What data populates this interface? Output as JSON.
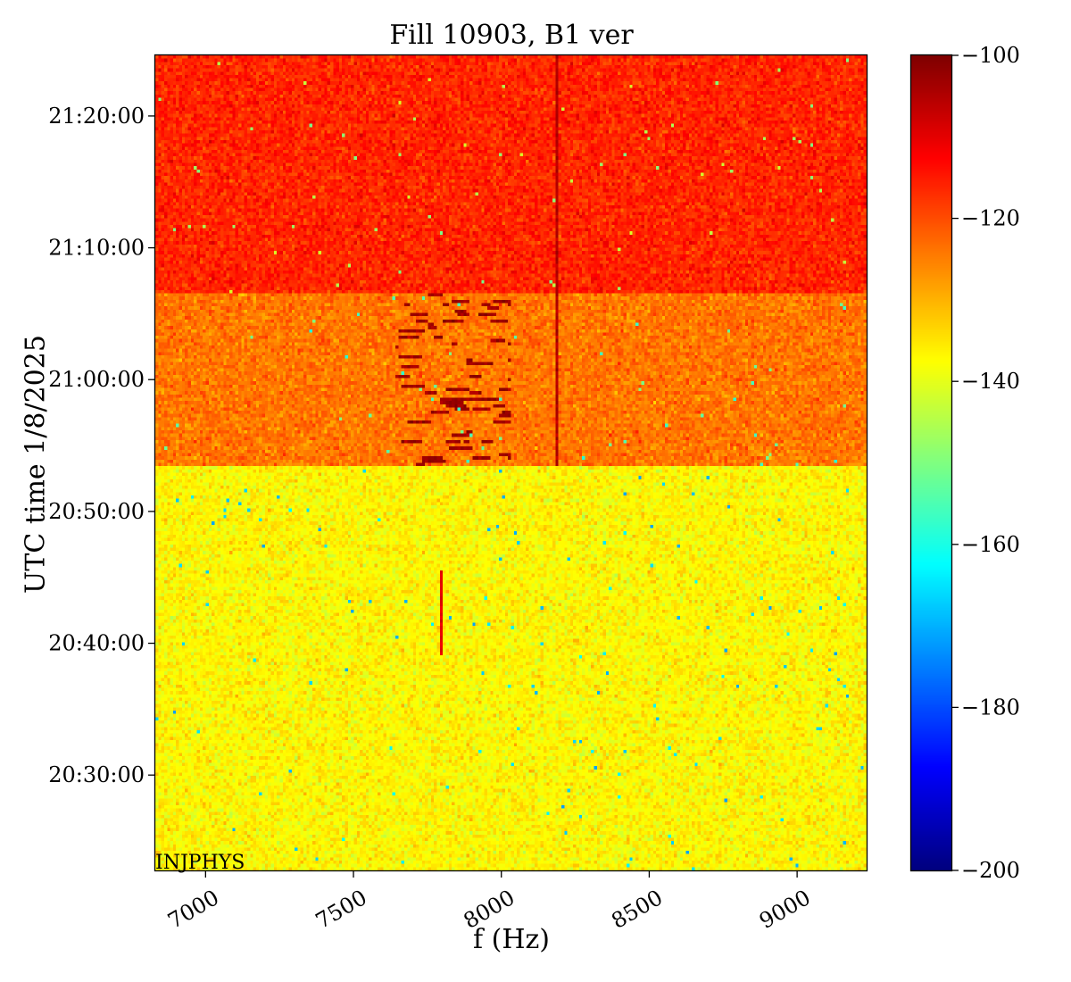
{
  "chart_data": {
    "type": "heatmap",
    "title": "Fill 10903, B1 ver",
    "xlabel": "f (Hz)",
    "ylabel": "UTC time 1/8/2025",
    "annotation": "INJPHYS",
    "x_range": [
      6830,
      9235
    ],
    "x_ticks": [
      7000,
      7500,
      8000,
      8500,
      9000
    ],
    "y_range": [
      "20:22:46",
      "21:24:36"
    ],
    "y_ticks": [
      "20:30:00",
      "20:40:00",
      "20:50:00",
      "21:00:00",
      "21:10:00",
      "21:20:00"
    ],
    "colormap": "jet",
    "colorbar": {
      "range": [
        -200,
        -100
      ],
      "ticks": [
        -100,
        -120,
        -140,
        -160,
        -180,
        -200
      ],
      "tick_labels": [
        "−100",
        "−120",
        "−140",
        "−160",
        "−180",
        "−200"
      ]
    },
    "regions": [
      {
        "time_from": "20:22:46",
        "time_to": "20:53:30",
        "mean_level": -137,
        "description_level": "background"
      },
      {
        "time_from": "20:53:30",
        "time_to": "21:06:30",
        "mean_level": -124
      },
      {
        "time_from": "21:06:30",
        "time_to": "21:24:36",
        "mean_level": -116
      }
    ],
    "features": [
      {
        "kind": "vertical_line",
        "freq": 8190,
        "time_from": "20:53:30",
        "time_to": "21:24:36",
        "level": -105
      },
      {
        "kind": "vertical_line",
        "freq": 7800,
        "time_from": "20:39:00",
        "time_to": "20:45:30",
        "level": -110
      },
      {
        "kind": "burst_cluster",
        "freq_from": 7620,
        "freq_to": 8030,
        "time_from": "20:53:30",
        "time_to": "21:06:30",
        "level": -103
      }
    ]
  }
}
